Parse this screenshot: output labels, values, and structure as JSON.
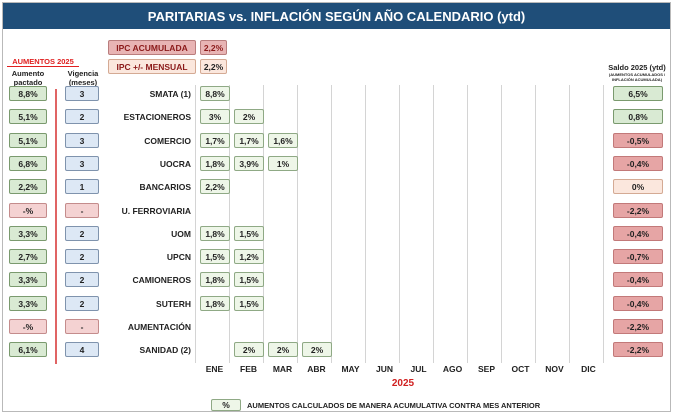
{
  "title": "PARITARIAS vs. INFLACIÓN SEGÚN AÑO CALENDARIO (ytd)",
  "left_header": {
    "group": "AUMENTOS 2025",
    "col1": "Aumento pactado",
    "col2": "Vigencia (meses)"
  },
  "ipc": {
    "acumulada_label": "IPC ACUMULADA",
    "acumulada_value": "2,2%",
    "mensual_label": "IPC +/- MENSUAL",
    "mensual_value": "2,2%"
  },
  "right_header": {
    "title": "Saldo 2025 (ytd)",
    "subtitle": "(AUMENTOS ACUMULADOS / INFLACIÓN ACUMULADA)"
  },
  "months": [
    "ENE",
    "FEB",
    "MAR",
    "ABR",
    "MAY",
    "JUN",
    "JUL",
    "AGO",
    "SEP",
    "OCT",
    "NOV",
    "DIC"
  ],
  "year": "2025",
  "legend": {
    "swatch": "%",
    "text": "AUMENTOS CALCULADOS DE MANERA ACUMULATIVA CONTRA MES ANTERIOR"
  },
  "rows": [
    {
      "union": "SMATA (1)",
      "pactado": "8,8%",
      "vigencia": "3",
      "monthly": [
        "8,8%"
      ],
      "saldo": "6,5%",
      "saldo_status": "positive"
    },
    {
      "union": "ESTACIONEROS",
      "pactado": "5,1%",
      "vigencia": "2",
      "monthly": [
        "3%",
        "2%"
      ],
      "saldo": "0,8%",
      "saldo_status": "positive"
    },
    {
      "union": "COMERCIO",
      "pactado": "5,1%",
      "vigencia": "3",
      "monthly": [
        "1,7%",
        "1,7%",
        "1,6%"
      ],
      "saldo": "-0,5%",
      "saldo_status": "negative"
    },
    {
      "union": "UOCRA",
      "pactado": "6,8%",
      "vigencia": "3",
      "monthly": [
        "1,8%",
        "3,9%",
        "1%"
      ],
      "saldo": "-0,4%",
      "saldo_status": "negative"
    },
    {
      "union": "BANCARIOS",
      "pactado": "2,2%",
      "vigencia": "1",
      "monthly": [
        "2,2%"
      ],
      "saldo": "0%",
      "saldo_status": "neutral"
    },
    {
      "union": "U. FERROVIARIA",
      "pactado": "-%",
      "vigencia": "-",
      "monthly": [],
      "saldo": "-2,2%",
      "saldo_status": "negative"
    },
    {
      "union": "UOM",
      "pactado": "3,3%",
      "vigencia": "2",
      "monthly": [
        "1,8%",
        "1,5%"
      ],
      "saldo": "-0,4%",
      "saldo_status": "negative"
    },
    {
      "union": "UPCN",
      "pactado": "2,7%",
      "vigencia": "2",
      "monthly": [
        "1,5%",
        "1,2%"
      ],
      "saldo": "-0,7%",
      "saldo_status": "negative"
    },
    {
      "union": "CAMIONEROS",
      "pactado": "3,3%",
      "vigencia": "2",
      "monthly": [
        "1,8%",
        "1,5%"
      ],
      "saldo": "-0,4%",
      "saldo_status": "negative"
    },
    {
      "union": "SUTERH",
      "pactado": "3,3%",
      "vigencia": "2",
      "monthly": [
        "1,8%",
        "1,5%"
      ],
      "saldo": "-0,4%",
      "saldo_status": "negative"
    },
    {
      "union": "AUMENTACIÓN",
      "pactado": "-%",
      "vigencia": "-",
      "monthly": [],
      "saldo": "-2,2%",
      "saldo_status": "negative"
    },
    {
      "union": "SANIDAD (2)",
      "pactado": "6,1%",
      "vigencia": "4",
      "monthly": [
        "",
        "2%",
        "2%",
        "2%"
      ],
      "saldo": "-2,2%",
      "saldo_status": "negative"
    }
  ]
}
